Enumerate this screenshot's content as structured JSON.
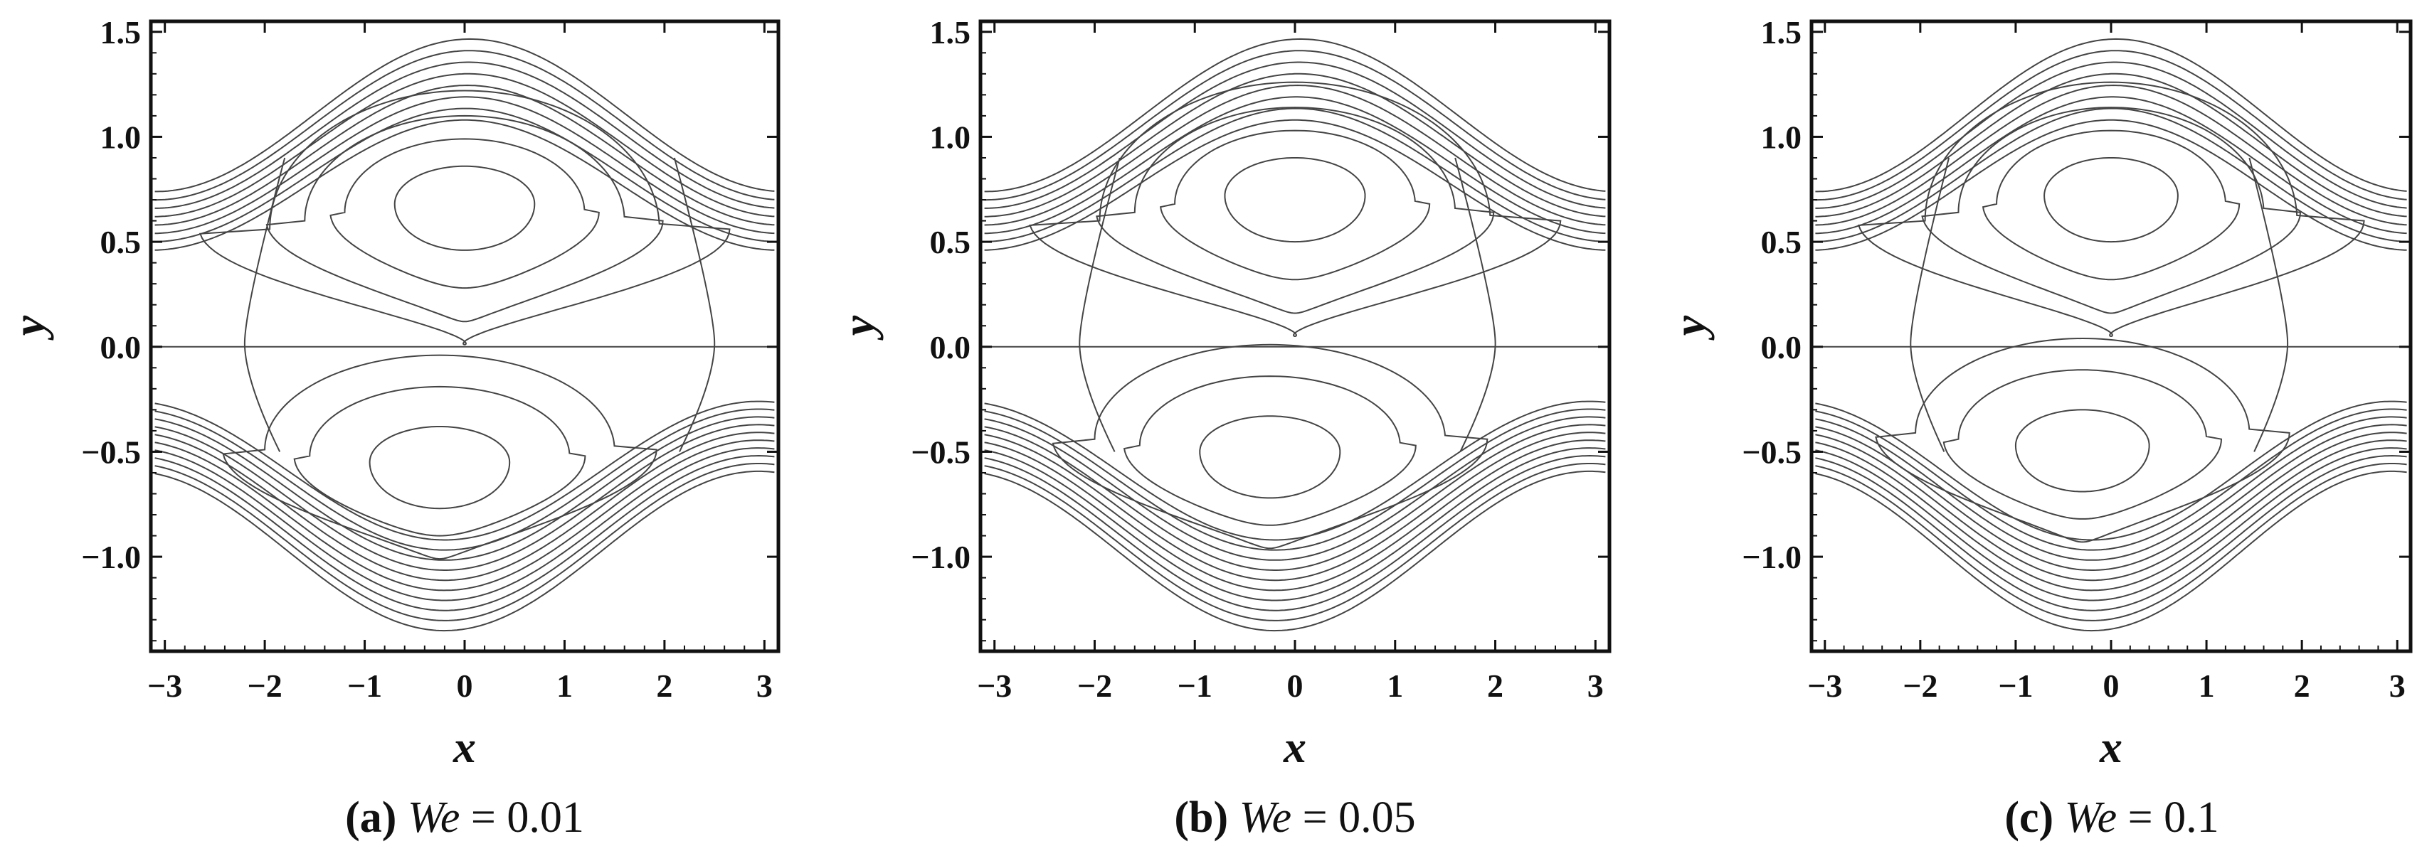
{
  "figure": {
    "panels": [
      {
        "letter": "(a)",
        "param": "We",
        "rest": " = 0.01"
      },
      {
        "letter": "(b)",
        "param": "We",
        "rest": " = 0.05"
      },
      {
        "letter": "(c)",
        "param": "We",
        "rest": " = 0.1"
      }
    ]
  },
  "chart_data": [
    {
      "type": "contour",
      "xlabel": "x",
      "ylabel": "y",
      "xlim": [
        -3.14,
        3.14
      ],
      "ylim": [
        -1.45,
        1.55
      ],
      "xticks": [
        -3,
        -2,
        -1,
        0,
        1,
        2,
        3
      ],
      "xtick_labels": [
        "−3",
        "−2",
        "−1",
        "0",
        "1",
        "2",
        "3"
      ],
      "yticks": [
        1.5,
        1.0,
        0.5,
        0.0,
        -0.5,
        -1.0
      ],
      "ytick_labels": [
        "1.5",
        "1.0",
        "0.5",
        "0.0",
        "−0.5",
        "−1.0"
      ],
      "grid": false,
      "We": 0.01,
      "upper_eddy_center": [
        0.0,
        0.68
      ],
      "lower_eddy_center": [
        -0.25,
        -0.55
      ],
      "stagnation_points_x": [
        -2.2,
        2.5
      ],
      "upper_wall_amplitude": 0.5,
      "lower_wall_amplitude": 0.4
    },
    {
      "type": "contour",
      "xlabel": "x",
      "ylabel": "y",
      "xlim": [
        -3.14,
        3.14
      ],
      "ylim": [
        -1.45,
        1.55
      ],
      "xticks": [
        -3,
        -2,
        -1,
        0,
        1,
        2,
        3
      ],
      "xtick_labels": [
        "−3",
        "−2",
        "−1",
        "0",
        "1",
        "2",
        "3"
      ],
      "yticks": [
        1.5,
        1.0,
        0.5,
        0.0,
        -0.5,
        -1.0
      ],
      "ytick_labels": [
        "1.5",
        "1.0",
        "0.5",
        "0.0",
        "−0.5",
        "−1.0"
      ],
      "grid": false,
      "We": 0.05,
      "upper_eddy_center": [
        0.0,
        0.72
      ],
      "lower_eddy_center": [
        -0.25,
        -0.5
      ],
      "stagnation_points_x": [
        -2.15,
        2.0
      ],
      "upper_wall_amplitude": 0.5,
      "lower_wall_amplitude": 0.4
    },
    {
      "type": "contour",
      "xlabel": "x",
      "ylabel": "y",
      "xlim": [
        -3.14,
        3.14
      ],
      "ylim": [
        -1.45,
        1.55
      ],
      "xticks": [
        -3,
        -2,
        -1,
        0,
        1,
        2,
        3
      ],
      "xtick_labels": [
        "−3",
        "−2",
        "−1",
        "0",
        "1",
        "2",
        "3"
      ],
      "yticks": [
        1.5,
        1.0,
        0.5,
        0.0,
        -0.5,
        -1.0
      ],
      "ytick_labels": [
        "1.5",
        "1.0",
        "0.5",
        "0.0",
        "−0.5",
        "−1.0"
      ],
      "grid": false,
      "We": 0.1,
      "upper_eddy_center": [
        0.0,
        0.72
      ],
      "lower_eddy_center": [
        -0.3,
        -0.47
      ],
      "stagnation_points_x": [
        -2.1,
        1.85
      ],
      "upper_wall_amplitude": 0.5,
      "lower_wall_amplitude": 0.4
    }
  ]
}
